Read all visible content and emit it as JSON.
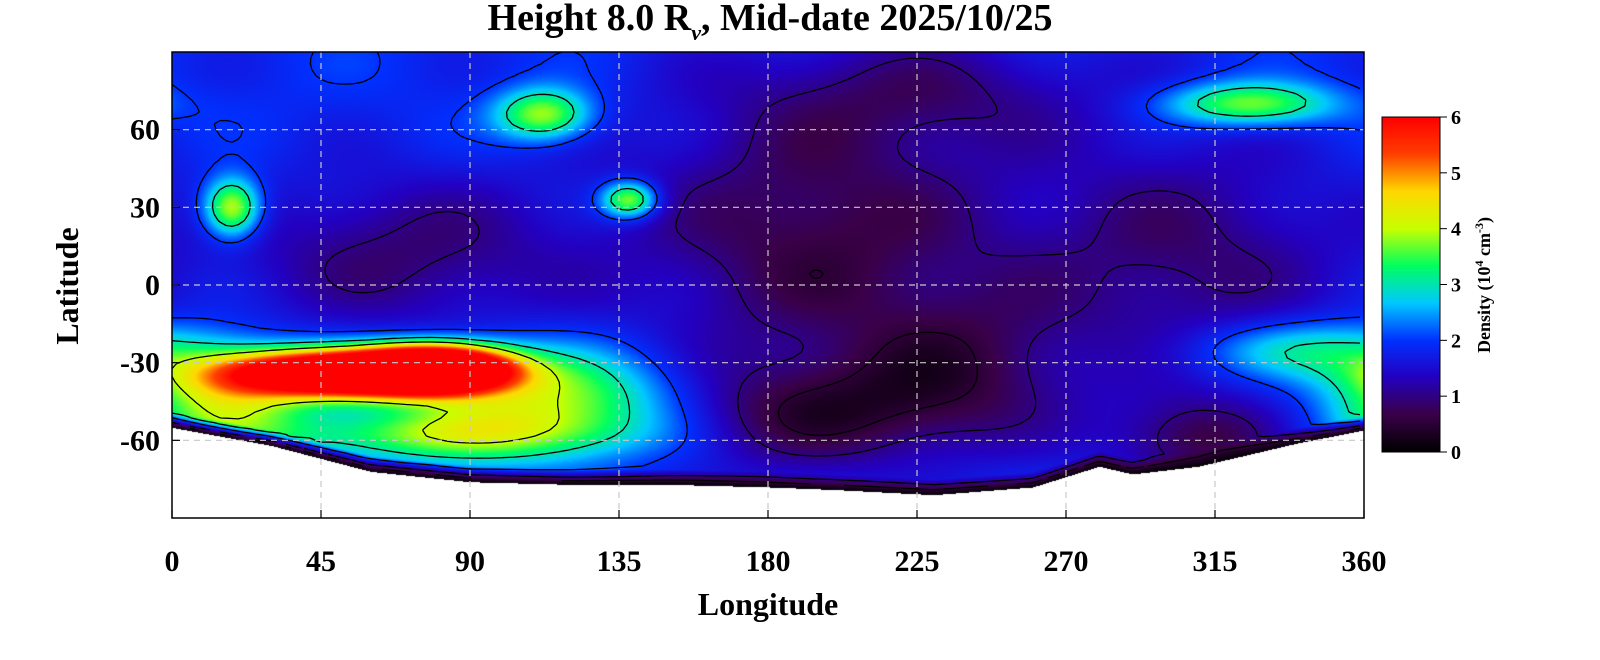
{
  "chart_data": {
    "type": "heatmap",
    "title_prefix": "Height 8.0 R",
    "title_subscript": "ν",
    "title_suffix": ", Mid-date 2025/10/25",
    "xlabel": "Longitude",
    "ylabel": "Latitude",
    "xlim": [
      0,
      360
    ],
    "ylim": [
      -90,
      90
    ],
    "xticks": [
      0,
      45,
      90,
      135,
      180,
      225,
      270,
      315,
      360
    ],
    "yticks": [
      60,
      30,
      0,
      -30,
      -60
    ],
    "grid": true,
    "colorbar": {
      "label_prefix": "Density (10",
      "label_exp1": "4",
      "label_mid": " cm",
      "label_exp2": "-3",
      "label_suffix": ")",
      "range": [
        0,
        6
      ],
      "ticks": [
        0,
        1,
        2,
        3,
        4,
        5,
        6
      ],
      "colors": [
        "#000000",
        "#3a0048",
        "#2400c0",
        "#0030ff",
        "#00c8ff",
        "#00ff60",
        "#c8ff00",
        "#ffd800",
        "#ff4000",
        "#ff0000"
      ]
    },
    "background_value": 1.9,
    "features": [
      {
        "lon": 52,
        "lat": -34,
        "slon": 24,
        "slat": 6,
        "value": 7.0
      },
      {
        "lon": 80,
        "lat": -32,
        "slon": 15,
        "slat": 6,
        "value": 6.5
      },
      {
        "lon": 115,
        "lat": -45,
        "slon": 30,
        "slat": 14,
        "value": 2.2
      },
      {
        "lon": 15,
        "lat": -44,
        "slon": 18,
        "slat": 12,
        "value": 2.0
      },
      {
        "lon": 75,
        "lat": -58,
        "slon": 40,
        "slat": 7,
        "value": 1.4
      },
      {
        "lon": 18,
        "lat": 30,
        "slon": 6,
        "slat": 8,
        "value": 2.5
      },
      {
        "lon": 138,
        "lat": 33,
        "slon": 6,
        "slat": 5,
        "value": 2.3
      },
      {
        "lon": 112,
        "lat": 66,
        "slon": 10,
        "slat": 7,
        "value": 2.1
      },
      {
        "lon": 325,
        "lat": 70,
        "slon": 18,
        "slat": 6,
        "value": 2.0
      },
      {
        "lon": 345,
        "lat": -25,
        "slon": 25,
        "slat": 8,
        "value": 1.3
      },
      {
        "lon": 195,
        "lat": 20,
        "slon": 40,
        "slat": 40,
        "value": -1.3
      },
      {
        "lon": 70,
        "lat": 12,
        "slon": 35,
        "slat": 22,
        "value": -1.0
      },
      {
        "lon": 305,
        "lat": 12,
        "slon": 35,
        "slat": 32,
        "value": -1.0
      },
      {
        "lon": 190,
        "lat": -50,
        "slon": 40,
        "slat": 15,
        "value": -1.2
      },
      {
        "lon": 240,
        "lat": -30,
        "slon": 25,
        "slat": 20,
        "value": -0.8
      },
      {
        "lon": 230,
        "lat": 75,
        "slon": 40,
        "slat": 15,
        "value": -0.7
      },
      {
        "lon": 310,
        "lat": -60,
        "slon": 18,
        "slat": 12,
        "value": -1.2
      }
    ],
    "south_edge": [
      [
        0,
        -55
      ],
      [
        30,
        -62
      ],
      [
        60,
        -72
      ],
      [
        90,
        -76
      ],
      [
        120,
        -77
      ],
      [
        150,
        -77
      ],
      [
        180,
        -78
      ],
      [
        200,
        -79
      ],
      [
        230,
        -81
      ],
      [
        260,
        -78
      ],
      [
        280,
        -70
      ],
      [
        290,
        -73
      ],
      [
        310,
        -70
      ],
      [
        340,
        -61
      ],
      [
        360,
        -56
      ]
    ]
  }
}
